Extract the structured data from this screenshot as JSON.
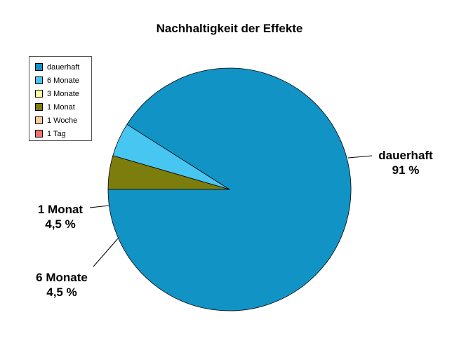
{
  "chart_data": {
    "type": "pie",
    "title": "Nachhaltigkeit der Effekte",
    "legend_position": "top-left",
    "categories": [
      "dauerhaft",
      "6 Monate",
      "3 Monate",
      "1 Monat",
      "1 Woche",
      "1 Tag"
    ],
    "values": [
      91,
      4.5,
      0,
      4.5,
      0,
      0
    ],
    "colors": [
      "#1193c5",
      "#48c6f2",
      "#ffffa6",
      "#7d7d0e",
      "#ffc9a0",
      "#f07270"
    ],
    "data_labels": [
      {
        "name": "dauerhaft",
        "value": "91 %"
      },
      {
        "name": "6 Monate",
        "value": "4,5 %"
      },
      {
        "name": "1 Monat",
        "value": "4,5 %"
      }
    ]
  }
}
